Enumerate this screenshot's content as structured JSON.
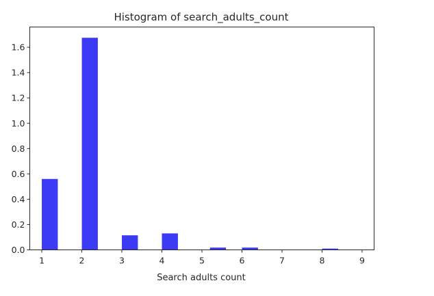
{
  "chart_data": {
    "type": "bar",
    "title": "Histogram of search_adults_count",
    "xlabel": "Search adults count",
    "ylabel": "",
    "x_ticks": [
      "1",
      "2",
      "3",
      "4",
      "5",
      "6",
      "7",
      "8",
      "9"
    ],
    "y_ticks": [
      "0.0",
      "0.2",
      "0.4",
      "0.6",
      "0.8",
      "1.0",
      "1.2",
      "1.4",
      "1.6"
    ],
    "xlim": [
      0.7,
      9.3
    ],
    "ylim": [
      0,
      1.76
    ],
    "grid": false,
    "bar_color": "#3b3bf5",
    "bars": [
      {
        "x": 1.0,
        "width": 0.4,
        "value": 0.56
      },
      {
        "x": 2.0,
        "width": 0.4,
        "value": 1.675
      },
      {
        "x": 3.0,
        "width": 0.4,
        "value": 0.115
      },
      {
        "x": 4.0,
        "width": 0.4,
        "value": 0.13
      },
      {
        "x": 5.2,
        "width": 0.4,
        "value": 0.018
      },
      {
        "x": 6.0,
        "width": 0.4,
        "value": 0.018
      },
      {
        "x": 7.0,
        "width": 0.4,
        "value": 0.0
      },
      {
        "x": 8.0,
        "width": 0.4,
        "value": 0.01
      },
      {
        "x": 9.0,
        "width": 0.4,
        "value": 0.0
      }
    ]
  }
}
